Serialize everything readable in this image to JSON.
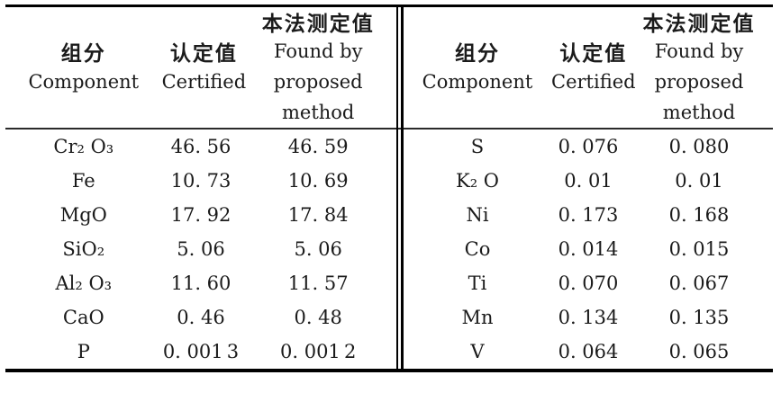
{
  "header": {
    "component_zh": "组分",
    "component_en": "Component",
    "certified_zh": "认定值",
    "certified_en": "Certified",
    "found_zh": "本法测定值",
    "found_en1": "Found by",
    "found_en2": "proposed",
    "found_en3": "method"
  },
  "left_rows": [
    {
      "component": "Cr₂ O₃",
      "certified": "46. 56",
      "found": "46. 59"
    },
    {
      "component": "Fe",
      "certified": "10. 73",
      "found": "10. 69"
    },
    {
      "component": "MgO",
      "certified": "17. 92",
      "found": "17. 84"
    },
    {
      "component": "SiO₂",
      "certified": "5. 06",
      "found": "5. 06"
    },
    {
      "component": "Al₂ O₃",
      "certified": "11. 60",
      "found": "11. 57"
    },
    {
      "component": "CaO",
      "certified": "0. 46",
      "found": "0. 48"
    },
    {
      "component": "P",
      "certified": "0. 001 3",
      "found": "0. 001 2"
    }
  ],
  "right_rows": [
    {
      "component": "S",
      "certified": "0. 076",
      "found": "0. 080"
    },
    {
      "component": "K₂ O",
      "certified": "0. 01",
      "found": "0. 01"
    },
    {
      "component": "Ni",
      "certified": "0. 173",
      "found": "0. 168"
    },
    {
      "component": "Co",
      "certified": "0. 014",
      "found": "0. 015"
    },
    {
      "component": "Ti",
      "certified": "0. 070",
      "found": "0. 067"
    },
    {
      "component": "Mn",
      "certified": "0. 134",
      "found": "0. 135"
    },
    {
      "component": "V",
      "certified": "0. 064",
      "found": "0. 065"
    }
  ],
  "colors": {
    "rule": "#000000",
    "text": "#1b1b1b"
  }
}
